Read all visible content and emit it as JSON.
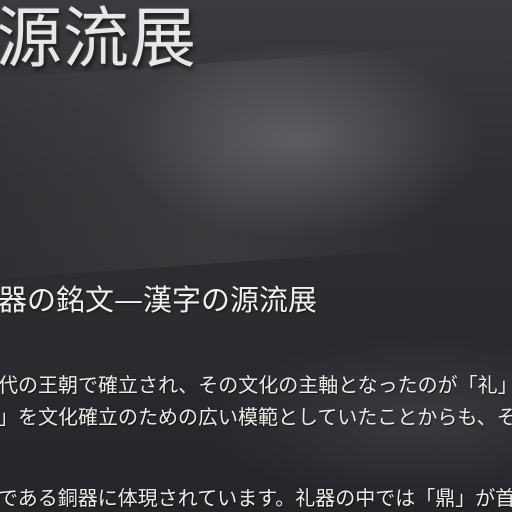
{
  "sign": {
    "big_title": "源流展",
    "sub_title": "器の銘文—漢字の源流展",
    "body_lines": [
      "代の王朝で確立され、その文化の主軸となったのが「礼」と「楽」",
      "」を文化確立のための広い模範としていたことからも、その重",
      "である銅器に体現されています。礼器の中では「鼎」が首位にあり"
    ]
  }
}
